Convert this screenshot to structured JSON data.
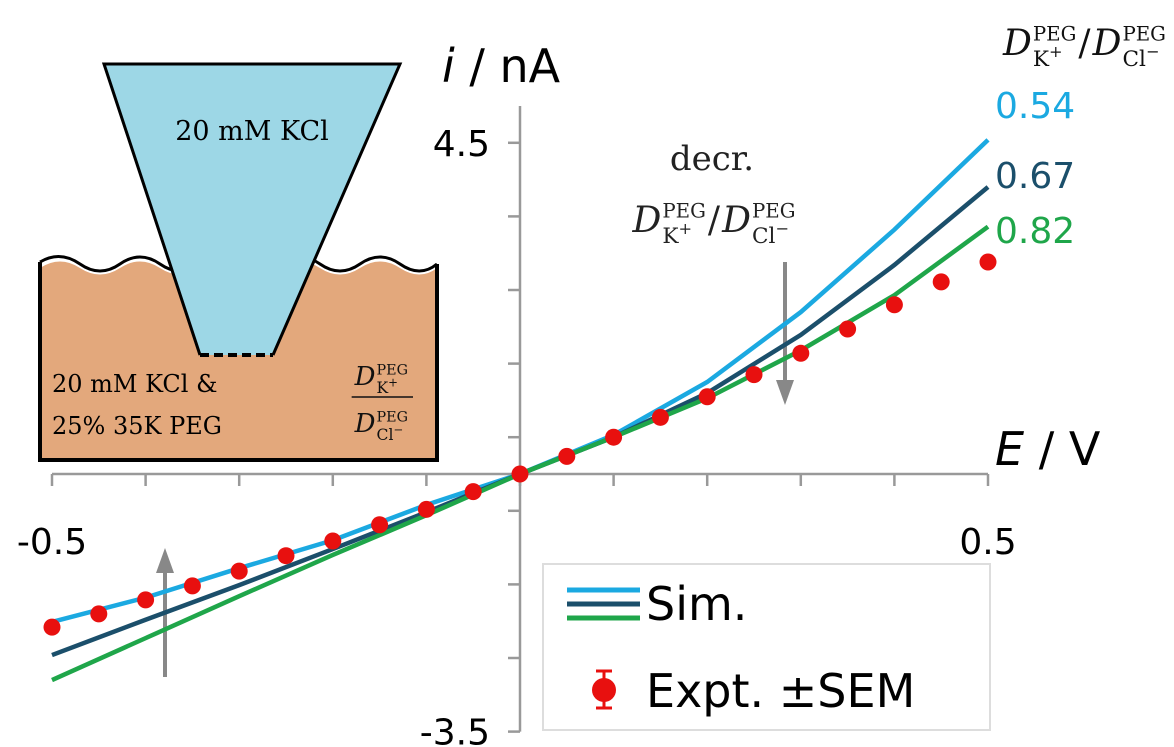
{
  "chart_data": {
    "type": "line",
    "x_label": {
      "symbol": "E",
      "unit": "/ V"
    },
    "y_label": {
      "symbol": "i",
      "unit": "/ nA"
    },
    "xlim": [
      -0.5,
      0.5
    ],
    "ylim": [
      -3.5,
      5
    ],
    "xticks": [
      -0.5,
      0.5
    ],
    "yticks": [
      -3.5,
      4.5
    ],
    "x_minor_ticks": [
      -0.4,
      -0.3,
      -0.2,
      -0.1,
      0,
      0.1,
      0.2,
      0.3,
      0.4
    ],
    "y_minor_ticks": [
      -2.5,
      -1.5,
      -0.5,
      0.5,
      1.5,
      2.5,
      3.5
    ],
    "ratio": {
      "symbol": "D",
      "superscript": "PEG",
      "cation": "K",
      "cation_charge": "+",
      "separator": "/",
      "anion": "Cl",
      "anion_charge": "−"
    },
    "annotation": "decr.",
    "series": [
      {
        "name": "0.54",
        "color": "#1ba9e1",
        "x": [
          -0.5,
          -0.4,
          -0.3,
          -0.2,
          -0.1,
          0,
          0.1,
          0.2,
          0.3,
          0.4,
          0.5
        ],
        "values": [
          -2.01,
          -1.68,
          -1.28,
          -0.9,
          -0.42,
          0,
          0.53,
          1.25,
          2.2,
          3.32,
          4.54
        ]
      },
      {
        "name": "0.67",
        "color": "#1b4f6b",
        "x": [
          -0.5,
          -0.4,
          -0.3,
          -0.2,
          -0.1,
          0,
          0.1,
          0.2,
          0.3,
          0.4,
          0.5
        ],
        "values": [
          -2.46,
          -1.98,
          -1.51,
          -1.02,
          -0.52,
          0,
          0.5,
          1.1,
          1.89,
          2.84,
          3.9
        ]
      },
      {
        "name": "0.82",
        "color": "#1fa64a",
        "x": [
          -0.5,
          -0.4,
          -0.3,
          -0.2,
          -0.1,
          0,
          0.1,
          0.2,
          0.3,
          0.4,
          0.5
        ],
        "values": [
          -2.8,
          -2.23,
          -1.66,
          -1.1,
          -0.56,
          0,
          0.5,
          1.03,
          1.68,
          2.43,
          3.36
        ]
      }
    ],
    "experiment": {
      "name": "Expt. ±SEM",
      "color": "#e8100f",
      "x": [
        -0.5,
        -0.45,
        -0.4,
        -0.35,
        -0.3,
        -0.25,
        -0.2,
        -0.15,
        -0.1,
        -0.05,
        0,
        0.05,
        0.1,
        0.15,
        0.2,
        0.25,
        0.3,
        0.35,
        0.4,
        0.45,
        0.5
      ],
      "values": [
        -2.08,
        -1.9,
        -1.71,
        -1.52,
        -1.32,
        -1.11,
        -0.91,
        -0.69,
        -0.48,
        -0.24,
        0,
        0.24,
        0.5,
        0.77,
        1.05,
        1.35,
        1.64,
        1.97,
        2.3,
        2.61,
        2.88
      ]
    },
    "legend": {
      "simulation": "Sim."
    },
    "inset": {
      "pipette": "20 mM KCl",
      "bath_line1": "20 mM KCl &",
      "bath_line2": "25% 35K PEG"
    }
  }
}
